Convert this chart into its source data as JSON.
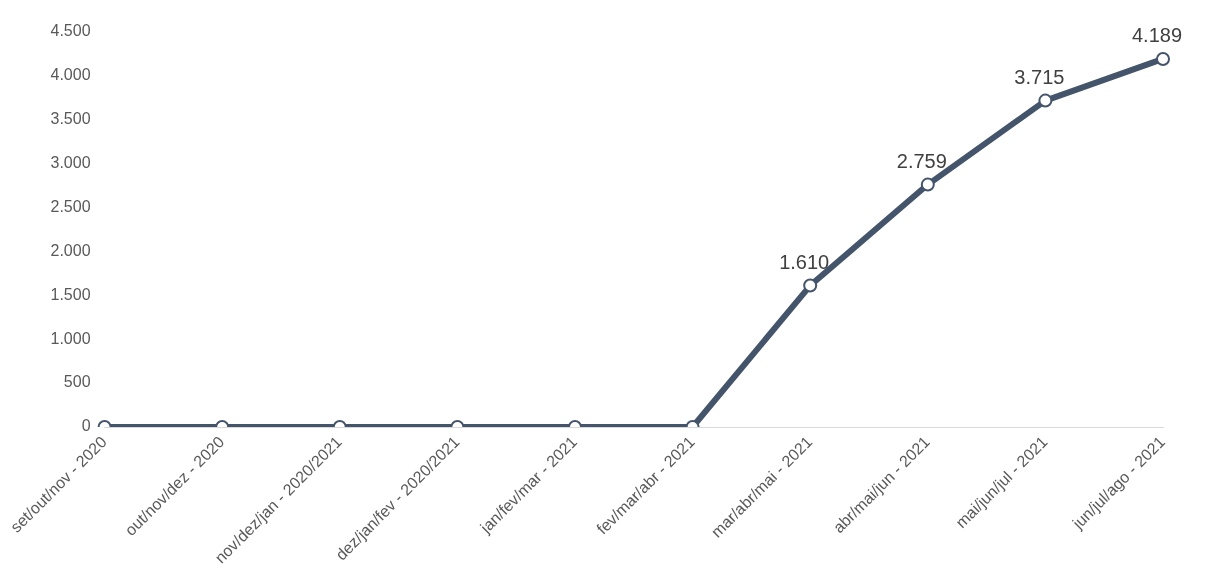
{
  "chart_data": {
    "type": "line",
    "categories": [
      "set/out/nov - 2020",
      "out/nov/dez - 2020",
      "nov/dez/jan - 2020/2021",
      "dez/jan/fev - 2020/2021",
      "jan/fev/mar - 2021",
      "fev/mar/abr - 2021",
      "mar/abr/mai - 2021",
      "abr/mai/jun - 2021",
      "mai/jun/jul - 2021",
      "jun/jul/ago - 2021"
    ],
    "series": [
      {
        "color": "#44546a",
        "values": [
          0,
          0,
          0,
          0,
          0,
          0,
          1610,
          2759,
          3715,
          4189
        ],
        "value_labels": [
          null,
          null,
          null,
          null,
          null,
          null,
          "1.610",
          "2.759",
          "3.715",
          "4.189"
        ]
      }
    ],
    "ylim": [
      0,
      4500
    ],
    "yticks": [
      0,
      {
        "value": 500,
        "label": "500"
      },
      {
        "value": 1000,
        "label": "1.000"
      },
      {
        "value": 1500,
        "label": "1.500"
      },
      {
        "value": 2000,
        "label": "2.000"
      },
      {
        "value": 2500,
        "label": "2.500"
      },
      {
        "value": 3000,
        "label": "3.000"
      },
      {
        "value": 3500,
        "label": "3.500"
      },
      {
        "value": 4000,
        "label": "4.000"
      },
      {
        "value": 4500,
        "label": "4.500"
      }
    ],
    "grid": false,
    "legend": false,
    "marker": "circle",
    "line_style": "solid"
  }
}
